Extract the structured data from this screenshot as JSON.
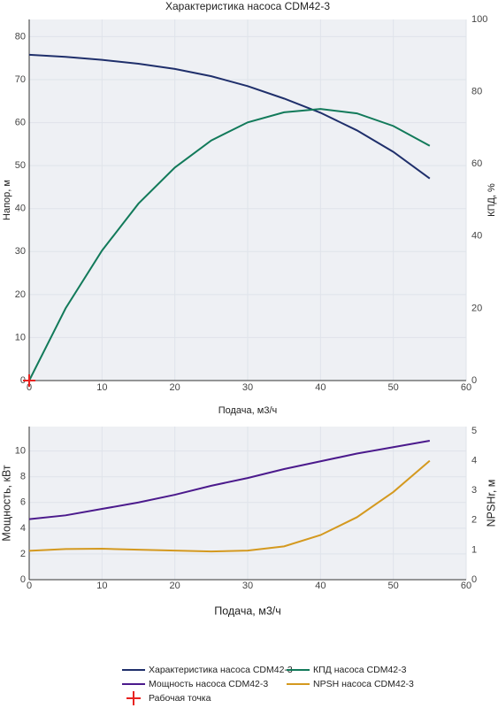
{
  "chart_data": [
    {
      "type": "line",
      "title": "Характеристика насоса CDM42-3",
      "xlabel": "Подача, м3/ч",
      "ylabel": "Напор, м",
      "y2label": "КПД, %",
      "xlim": [
        0,
        60
      ],
      "xticks": [
        0,
        10,
        20,
        30,
        40,
        50,
        60
      ],
      "ylim": [
        0,
        84
      ],
      "yticks": [
        0,
        10,
        20,
        30,
        40,
        50,
        60,
        70,
        80
      ],
      "y2lim": [
        0,
        100
      ],
      "y2ticks": [
        0,
        20,
        40,
        60,
        80,
        100
      ],
      "grid": true,
      "x": [
        0,
        5,
        10,
        15,
        20,
        25,
        30,
        35,
        40,
        45,
        50,
        55
      ],
      "series": [
        {
          "name": "Характеристика насоса CDM42-3",
          "color": "#1f2f6b",
          "values": [
            75.8,
            75.3,
            74.6,
            73.7,
            72.5,
            70.8,
            68.5,
            65.6,
            62.3,
            58.2,
            53.2,
            47
          ]
        },
        {
          "name": "КПД насоса CDM42-3",
          "color": "#127a5a",
          "axis": "y2",
          "values": [
            0,
            20,
            36,
            49,
            59,
            66.5,
            71.5,
            74.3,
            75.2,
            74,
            70.5,
            65
          ]
        },
        {
          "name": "Рабочая точка",
          "color": "#e8221f",
          "mode": "markers",
          "x": [
            0
          ],
          "values": [
            0
          ]
        }
      ]
    },
    {
      "type": "line",
      "xlabel": "Подача, м3/ч",
      "ylabel": "Мощность, кВт",
      "y2label": "NPSHr, м",
      "xlim": [
        0,
        60
      ],
      "xticks": [
        0,
        10,
        20,
        30,
        40,
        50,
        60
      ],
      "ylim": [
        0,
        11.9
      ],
      "yticks": [
        0,
        2,
        4,
        6,
        8,
        10
      ],
      "y2lim": [
        0,
        5.15
      ],
      "y2ticks": [
        0,
        1,
        2,
        3,
        4,
        5
      ],
      "grid": true,
      "x": [
        0,
        5,
        10,
        15,
        20,
        25,
        30,
        35,
        40,
        45,
        50,
        55
      ],
      "series": [
        {
          "name": "Мощность насоса CDM42-3",
          "color": "#4b1a8c",
          "values": [
            4.7,
            5.0,
            5.5,
            6.0,
            6.6,
            7.3,
            7.9,
            8.6,
            9.2,
            9.8,
            10.3,
            10.8
          ]
        },
        {
          "name": "NPSH насоса CDM42-3",
          "color": "#d4991f",
          "axis": "y2",
          "values": [
            0.97,
            1.03,
            1.04,
            1.01,
            0.98,
            0.95,
            0.98,
            1.12,
            1.5,
            2.1,
            2.95,
            4.0
          ]
        }
      ]
    }
  ]
}
